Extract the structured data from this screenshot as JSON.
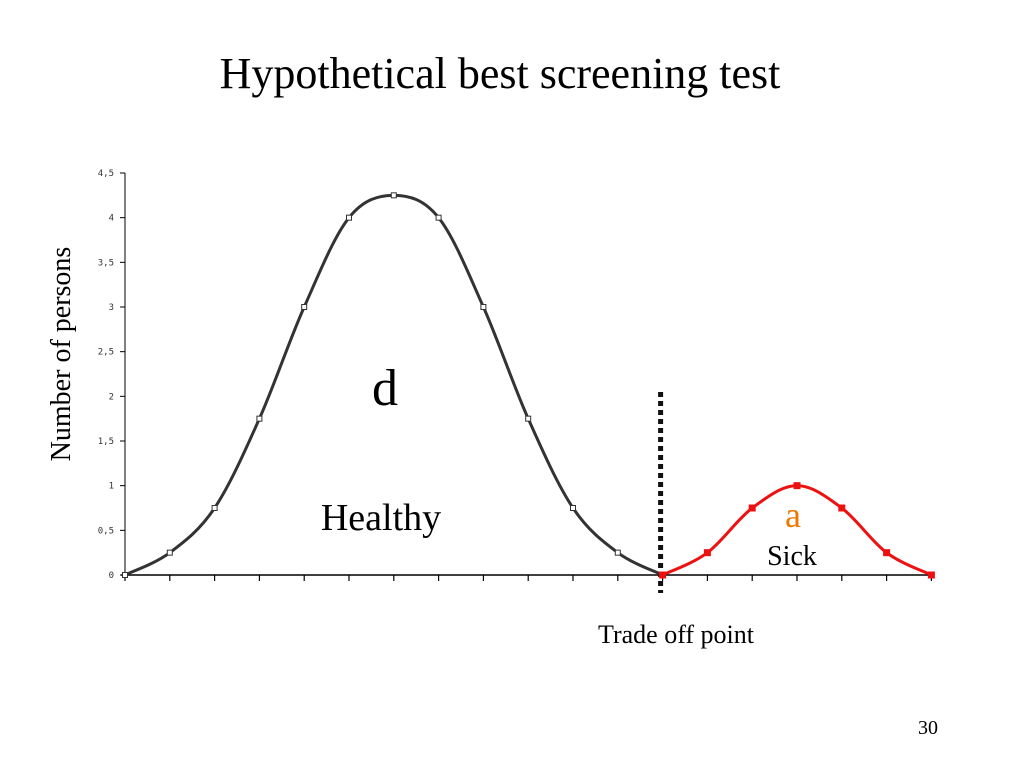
{
  "slide": {
    "title": "Hypothetical best screening test",
    "page_number": "30"
  },
  "colors": {
    "healthy_curve": "#333333",
    "sick_curve": "#ee1111",
    "cutoff_line": "#111111",
    "accent_letter": "#ee7700"
  },
  "chart_data": {
    "type": "line",
    "title": "",
    "xlabel": "",
    "ylabel": "Number of persons",
    "ylim": [
      0,
      4.5
    ],
    "y_ticks": [
      "0",
      "0,5",
      "1",
      "1,5",
      "2",
      "2,5",
      "3",
      "3,5",
      "4",
      "4,5"
    ],
    "y_tick_values": [
      0,
      0.5,
      1,
      1.5,
      2,
      2.5,
      3,
      3.5,
      4,
      4.5
    ],
    "x": [
      0,
      1,
      2,
      3,
      4,
      5,
      6,
      7,
      8,
      9,
      10,
      11,
      12,
      13,
      14,
      15,
      16,
      17,
      18
    ],
    "x_tick_labels_shown": false,
    "grid": false,
    "series": [
      {
        "key": "healthy",
        "x": [
          0,
          1,
          2,
          3,
          4,
          5,
          6,
          7,
          8,
          9,
          10,
          11,
          12
        ],
        "values": [
          0,
          0.25,
          0.75,
          1.75,
          3,
          4,
          4.25,
          4,
          3,
          1.75,
          0.75,
          0.25,
          0
        ],
        "marker": "hollow-square",
        "color": "#333333"
      },
      {
        "key": "sick",
        "x": [
          12,
          13,
          14,
          15,
          16,
          17,
          18
        ],
        "values": [
          0,
          0.25,
          0.75,
          1,
          0.75,
          0.25,
          0
        ],
        "marker": "filled-square",
        "color": "#ee1111"
      }
    ],
    "annotations": {
      "healthy_letter": "d",
      "healthy_label": "Healthy",
      "sick_letter": "a",
      "sick_label": "Sick",
      "cutoff_label": "Trade off point",
      "cutoff_x": 12,
      "cutoff_style": "dotted-vertical-line"
    }
  }
}
